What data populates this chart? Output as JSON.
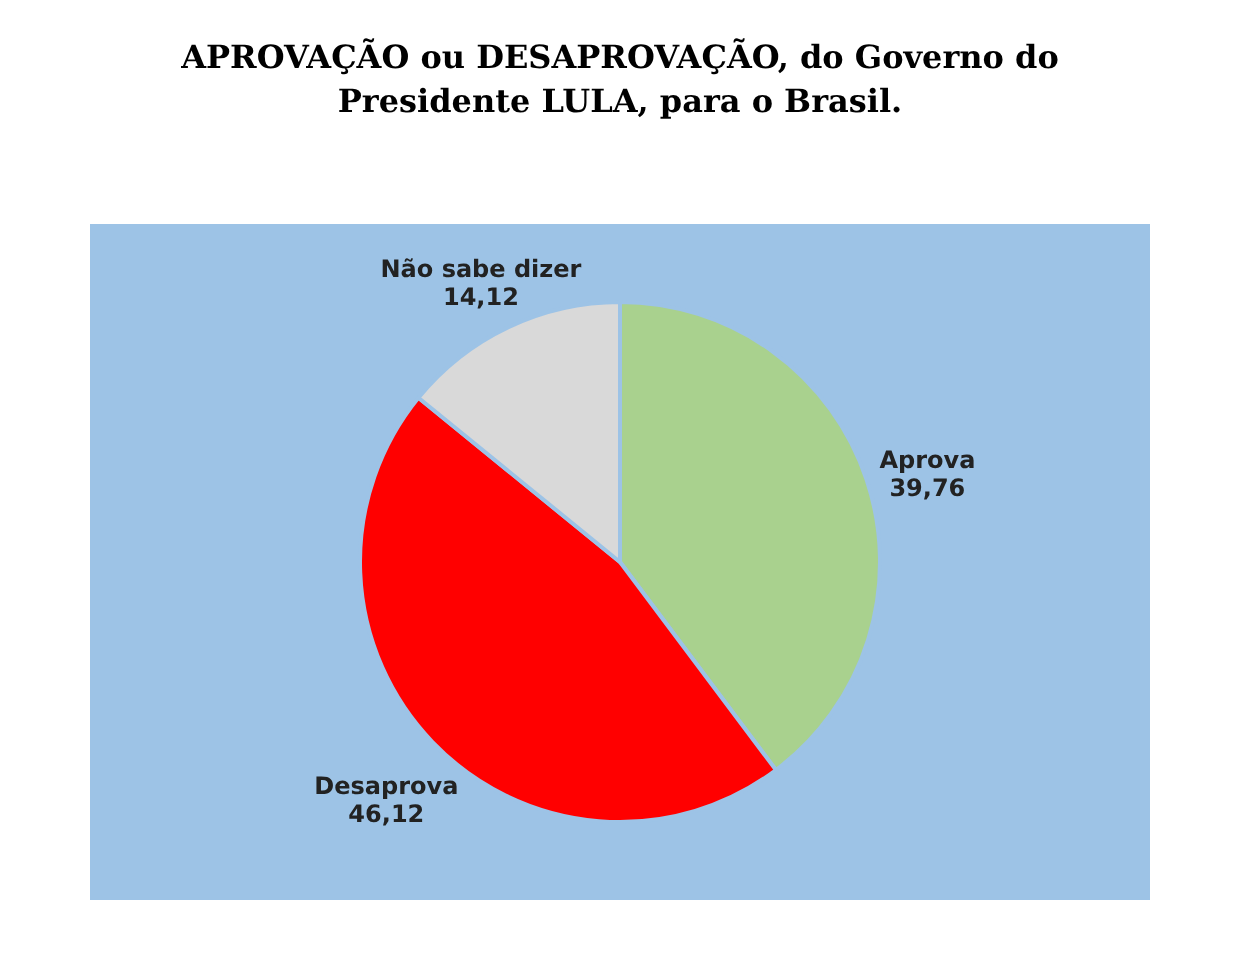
{
  "chart_data": {
    "type": "pie",
    "title": "APROVAÇÃO ou DESAPROVAÇÃO, do Governo do Presidente LULA, para o Brasil.",
    "categories": [
      "Aprova",
      "Desaprova",
      "Não sabe dizer"
    ],
    "values": [
      39.76,
      46.12,
      14.12
    ],
    "value_labels": [
      "39,76",
      "46,12",
      "14,12"
    ],
    "colors": [
      "#a9d18e",
      "#ff0000",
      "#d9d9d9"
    ]
  }
}
